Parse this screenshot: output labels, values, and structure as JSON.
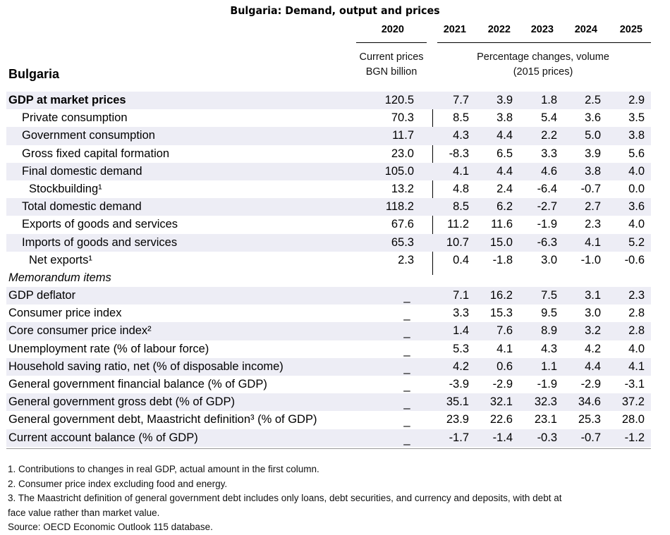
{
  "title": "Bulgaria: Demand, output and prices",
  "years": [
    "2020",
    "2021",
    "2022",
    "2023",
    "2024",
    "2025"
  ],
  "header_note_left": [
    "Current prices",
    "BGN billion"
  ],
  "header_note_right": [
    "Percentage changes, volume",
    "(2015 prices)"
  ],
  "country": "Bulgaria",
  "rows": [
    {
      "label": "GDP at market prices",
      "values": [
        "120.5",
        "7.7",
        "3.9",
        "1.8",
        "2.5",
        "2.9"
      ]
    },
    {
      "label": "Private consumption",
      "values": [
        "70.3",
        "8.5",
        "3.8",
        "5.4",
        "3.6",
        "3.5"
      ]
    },
    {
      "label": "Government consumption",
      "values": [
        "11.7",
        "4.3",
        "4.4",
        "2.2",
        "5.0",
        "3.8"
      ]
    },
    {
      "label": "Gross fixed capital formation",
      "values": [
        "23.0",
        "-8.3",
        "6.5",
        "3.3",
        "3.9",
        "5.6"
      ]
    },
    {
      "label": "Final domestic demand",
      "values": [
        "105.0",
        "4.1",
        "4.4",
        "4.6",
        "3.8",
        "4.0"
      ]
    },
    {
      "label": "Stockbuilding¹",
      "values": [
        "13.2",
        "4.8",
        "2.4",
        "-6.4",
        "-0.7",
        "0.0"
      ]
    },
    {
      "label": "Total domestic demand",
      "values": [
        "118.2",
        "8.5",
        "6.2",
        "-2.7",
        "2.7",
        "3.6"
      ]
    },
    {
      "label": "Exports of goods and services",
      "values": [
        "67.6",
        "11.2",
        "11.6",
        "-1.9",
        "2.3",
        "4.0"
      ]
    },
    {
      "label": "Imports of goods and services",
      "values": [
        "65.3",
        "10.7",
        "15.0",
        "-6.3",
        "4.1",
        "5.2"
      ]
    },
    {
      "label": "Net exports¹",
      "values": [
        "2.3",
        "0.4",
        "-1.8",
        "3.0",
        "-1.0",
        "-0.6"
      ]
    },
    {
      "label": "Memorandum items",
      "values": [
        "",
        "",
        "",
        "",
        "",
        ""
      ]
    },
    {
      "label": "GDP deflator",
      "values": [
        "_",
        "7.1",
        "16.2",
        "7.5",
        "3.1",
        "2.3"
      ]
    },
    {
      "label": "Consumer price index",
      "values": [
        "_",
        "3.3",
        "15.3",
        "9.5",
        "3.0",
        "2.8"
      ]
    },
    {
      "label": "Core consumer price index²",
      "values": [
        "_",
        "1.4",
        "7.6",
        "8.9",
        "3.2",
        "2.8"
      ]
    },
    {
      "label": "Unemployment rate (% of labour force)",
      "values": [
        "_",
        "5.3",
        "4.1",
        "4.3",
        "4.2",
        "4.0"
      ]
    },
    {
      "label": "Household saving ratio, net (% of disposable income)",
      "values": [
        "_",
        "4.2",
        "0.6",
        "1.1",
        "4.4",
        "4.1"
      ]
    },
    {
      "label": "General government financial balance (% of GDP)",
      "values": [
        "_",
        "-3.9",
        "-2.9",
        "-1.9",
        "-2.9",
        "-3.1"
      ]
    },
    {
      "label": "General government gross debt (% of GDP)",
      "values": [
        "_",
        "35.1",
        "32.1",
        "32.3",
        "34.6",
        "37.2"
      ]
    },
    {
      "label": "General government debt, Maastricht definition³ (% of GDP)",
      "values": [
        "_",
        "23.9",
        "22.6",
        "23.1",
        "25.3",
        "28.0"
      ]
    },
    {
      "label": "Current account balance (% of GDP)",
      "values": [
        "_",
        "-1.7",
        "-1.4",
        "-0.3",
        "-0.7",
        "-1.2"
      ]
    }
  ],
  "footnotes": [
    "1. Contributions to changes in real GDP, actual amount in the first column.",
    "2. Consumer price index excluding food and energy.",
    "3. The Maastricht definition of general government debt includes only loans, debt securities, and currency and deposits, with debt at",
    "face value rather than market value.",
    "Source: OECD Economic Outlook 115 database."
  ],
  "colors": {
    "shade": "#ededf5",
    "text": "#000000"
  }
}
